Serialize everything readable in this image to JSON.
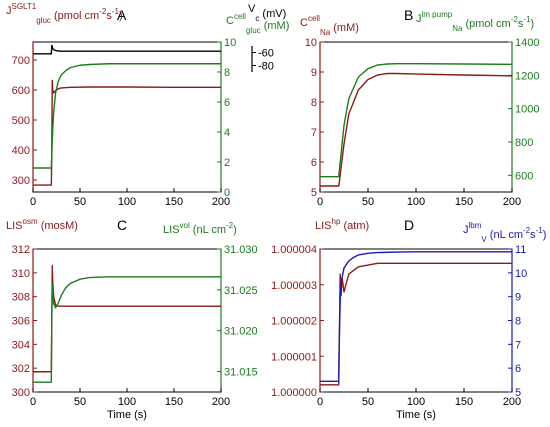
{
  "colors": {
    "red": "#8b1a1a",
    "green": "#1e7b1e",
    "blue": "#1a1ab4",
    "black": "#000000"
  },
  "chart_data": [
    {
      "id": "A",
      "type": "line",
      "panel_label": "A",
      "xlim": [
        0,
        200
      ],
      "xticks": [
        "0",
        "50",
        "100",
        "150",
        "200"
      ],
      "xlabel": "",
      "y_left": {
        "label": "J",
        "sup": "SGLT1",
        "sub": "gluc",
        "units": "(pmol cm",
        "units_sup": "-2",
        "units_tail": "s",
        "units_sup2": "-1",
        "units_end": ")",
        "lim": [
          260,
          760
        ],
        "ticks": [
          "300",
          "400",
          "500",
          "600",
          "700"
        ],
        "tick_values": [
          300,
          400,
          500,
          600,
          700
        ]
      },
      "y_right": {
        "label": "C",
        "sup": "cell",
        "sub": "gluc",
        "units": "(mM)",
        "lim": [
          0,
          10
        ],
        "ticks": [
          "0",
          "2",
          "4",
          "6",
          "8",
          "10"
        ],
        "tick_values": [
          0,
          2,
          4,
          6,
          8,
          10
        ]
      },
      "inset_axis": {
        "label": "V",
        "sub": "c",
        "units": "(mV)",
        "ticks": [
          "-60",
          "-80"
        ],
        "tick_values": [
          -60,
          -80
        ],
        "lim": [
          -90,
          -50
        ]
      },
      "series": [
        {
          "color": "red",
          "axis": "left",
          "x": [
            0,
            19.5,
            20,
            20.5,
            21,
            22,
            24,
            27,
            30,
            40,
            60,
            100,
            150,
            200
          ],
          "y": [
            283,
            283,
            395,
            632,
            600,
            590,
            598,
            604,
            607,
            609,
            610,
            610,
            609,
            609
          ]
        },
        {
          "color": "green",
          "axis": "right",
          "x": [
            0,
            19.5,
            20,
            21,
            22,
            24,
            27,
            30,
            35,
            40,
            50,
            60,
            80,
            100,
            150,
            200
          ],
          "y": [
            1.6,
            1.6,
            2.5,
            4.2,
            5.3,
            6.6,
            7.4,
            7.8,
            8.1,
            8.3,
            8.45,
            8.5,
            8.55,
            8.55,
            8.55,
            8.55
          ]
        },
        {
          "color": "black",
          "axis": "inset",
          "x": [
            0,
            19.5,
            20,
            21,
            23,
            26,
            30,
            40,
            60,
            100,
            200
          ],
          "y": [
            -62,
            -62,
            -49,
            -54,
            -56.5,
            -57.5,
            -58,
            -58,
            -58,
            -58,
            -58
          ]
        }
      ]
    },
    {
      "id": "B",
      "type": "line",
      "panel_label": "B",
      "xlim": [
        0,
        200
      ],
      "xticks": [
        "0",
        "50",
        "100",
        "150",
        "200"
      ],
      "xlabel": "",
      "y_left": {
        "label": "C",
        "sup": "cell",
        "sub": "Na",
        "units": "(mM)",
        "lim": [
          5,
          10
        ],
        "ticks": [
          "5",
          "6",
          "7",
          "8",
          "9",
          "10"
        ],
        "tick_values": [
          5,
          6,
          7,
          8,
          9,
          10
        ]
      },
      "y_right": {
        "label": "J",
        "sup": "lm pump",
        "sub": "Na",
        "units": "(pmol cm",
        "units_sup": "-2",
        "units_tail": "s",
        "units_sup2": "-1",
        "units_end": ")",
        "lim": [
          500,
          1400
        ],
        "ticks": [
          "600",
          "800",
          "1000",
          "1200",
          "1400"
        ],
        "tick_values": [
          600,
          800,
          1000,
          1200,
          1400
        ]
      },
      "series": [
        {
          "color": "red",
          "axis": "left",
          "x": [
            0,
            19.5,
            20,
            25,
            30,
            40,
            50,
            60,
            70,
            80,
            100,
            150,
            200
          ],
          "y": [
            5.2,
            5.2,
            5.3,
            6.6,
            7.6,
            8.4,
            8.75,
            8.9,
            8.95,
            8.95,
            8.93,
            8.9,
            8.87
          ]
        },
        {
          "color": "green",
          "axis": "right",
          "x": [
            0,
            19.5,
            20,
            25,
            30,
            40,
            50,
            60,
            70,
            80,
            100,
            150,
            200
          ],
          "y": [
            592,
            592,
            620,
            900,
            1060,
            1190,
            1240,
            1262,
            1268,
            1270,
            1270,
            1268,
            1266
          ]
        }
      ]
    },
    {
      "id": "C",
      "type": "line",
      "panel_label": "C",
      "xlim": [
        0,
        200
      ],
      "xticks": [
        "0",
        "50",
        "100",
        "150",
        "200"
      ],
      "xlabel": "Time (s)",
      "y_left": {
        "label": "LIS",
        "sup": "osm",
        "sub": "",
        "units": "(mosM)",
        "lim": [
          300,
          312
        ],
        "ticks": [
          "300",
          "302",
          "304",
          "306",
          "308",
          "310",
          "312"
        ],
        "tick_values": [
          300,
          302,
          304,
          306,
          308,
          310,
          312
        ]
      },
      "y_right": {
        "label": "LIS",
        "sup": "vol",
        "sub": "",
        "units": "(nL cm",
        "units_sup": "-2",
        "units_end": ")",
        "lim": [
          31.0125,
          31.03
        ],
        "ticks": [
          "31.015",
          "31.020",
          "31.025",
          "31.030"
        ],
        "tick_values": [
          31.015,
          31.02,
          31.025,
          31.03
        ]
      },
      "series": [
        {
          "color": "red",
          "axis": "left",
          "x": [
            0,
            19.5,
            20,
            20.5,
            21,
            22,
            24,
            27,
            30,
            40,
            60,
            100,
            150,
            200
          ],
          "y": [
            301.7,
            301.7,
            306,
            310.6,
            309.2,
            308,
            307.3,
            307.2,
            307.2,
            307.2,
            307.2,
            307.2,
            307.2,
            307.2
          ]
        },
        {
          "color": "green",
          "axis": "right",
          "x": [
            0,
            19.5,
            20,
            20.5,
            21,
            22,
            24,
            27,
            30,
            35,
            40,
            50,
            60,
            80,
            100,
            150,
            200
          ],
          "y": [
            31.0137,
            31.0137,
            31.022,
            31.0257,
            31.0245,
            31.0233,
            31.0228,
            31.0234,
            31.0243,
            31.0253,
            31.0258,
            31.0263,
            31.0265,
            31.0266,
            31.0266,
            31.0266,
            31.0266
          ]
        }
      ]
    },
    {
      "id": "D",
      "type": "line",
      "panel_label": "D",
      "xlim": [
        0,
        200
      ],
      "xticks": [
        "0",
        "50",
        "100",
        "150",
        "200"
      ],
      "xlabel": "Time (s)",
      "y_left": {
        "label": "LIS",
        "sup": "hp",
        "sub": "",
        "units": "(atm)",
        "lim": [
          1.0,
          1.000004
        ],
        "ticks": [
          "1.000000",
          "1.000001",
          "1.000002",
          "1.000003",
          "1.000004"
        ],
        "tick_values": [
          1.0,
          1.000001,
          1.000002,
          1.000003,
          1.000004
        ]
      },
      "y_right": {
        "label": "J",
        "sup": "lbm",
        "sub": "V",
        "units": "(nL cm",
        "units_sup": "-2",
        "units_tail": "s",
        "units_sup2": "-1",
        "units_end": ")",
        "lim": [
          5,
          11
        ],
        "ticks": [
          "5",
          "6",
          "7",
          "8",
          "9",
          "10",
          "11"
        ],
        "tick_values": [
          5,
          6,
          7,
          8,
          9,
          10,
          11
        ]
      },
      "series": [
        {
          "color": "red",
          "axis": "left",
          "x": [
            0,
            19.5,
            20,
            21,
            22,
            23,
            25,
            27,
            30,
            40,
            60,
            100,
            150,
            200
          ],
          "y": [
            1.0000002,
            1.0000002,
            1.0000012,
            1.0000033,
            1.0000027,
            1.0000032,
            1.0000028,
            1.000003,
            1.0000033,
            1.0000035,
            1.0000036,
            1.0000036,
            1.0000036,
            1.0000036
          ]
        },
        {
          "color": "blue",
          "axis": "right",
          "x": [
            0,
            19.5,
            20,
            21,
            22,
            25,
            30,
            35,
            40,
            50,
            60,
            80,
            100,
            150,
            200
          ],
          "y": [
            5.45,
            5.45,
            7.0,
            8.8,
            9.6,
            10.2,
            10.5,
            10.65,
            10.75,
            10.82,
            10.85,
            10.87,
            10.88,
            10.88,
            10.88
          ]
        }
      ]
    }
  ]
}
